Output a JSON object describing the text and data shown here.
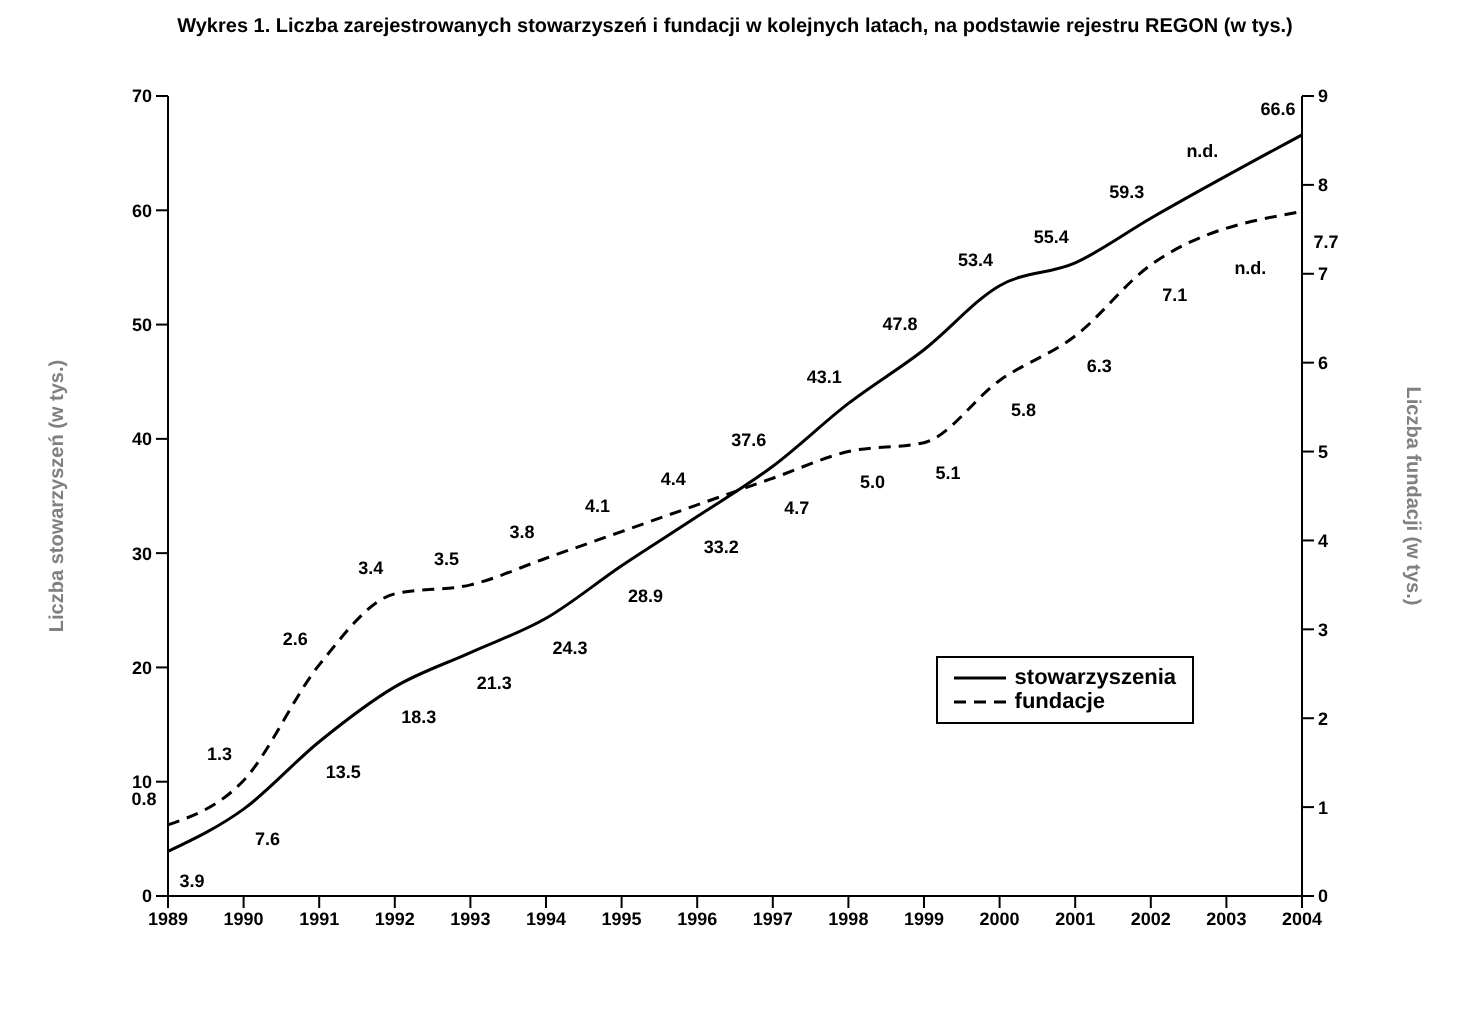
{
  "chart_data": {
    "type": "line",
    "title": "Wykres 1. Liczba zarejestrowanych stowarzyszeń i fundacji w kolejnych latach, na podstawie rejestru REGON (w tys.)",
    "ylabel": "Liczba stowarzyszeń (w tys.)",
    "y2label": "Liczba fundacji (w tys.)",
    "categories": [
      "1989",
      "1990",
      "1991",
      "1992",
      "1993",
      "1994",
      "1995",
      "1996",
      "1997",
      "1998",
      "1999",
      "2000",
      "2001",
      "2002",
      "2003",
      "2004"
    ],
    "series": [
      {
        "name": "stowarzyszenia",
        "color": "#000000",
        "line_style": "solid",
        "values": [
          3.9,
          7.6,
          13.5,
          18.3,
          21.3,
          24.3,
          28.9,
          33.2,
          37.6,
          43.1,
          47.8,
          53.4,
          55.4,
          59.3,
          null,
          66.6
        ],
        "value_labels": [
          "3.9",
          "7.6",
          "13.5",
          "18.3",
          "21.3",
          "24.3",
          "28.9",
          "33.2",
          "37.6",
          "43.1",
          "47.8",
          "53.4",
          "55.4",
          "59.3",
          "n.d.",
          "66.6"
        ]
      },
      {
        "name": "fundacje",
        "color": "#000000",
        "line_style": "dashed",
        "axis": "y2",
        "values": [
          0.8,
          1.3,
          2.6,
          3.4,
          3.5,
          3.8,
          4.1,
          4.4,
          4.7,
          5.0,
          5.1,
          5.8,
          6.3,
          7.1,
          null,
          7.7
        ],
        "value_labels": [
          "0.8",
          "1.3",
          "2.6",
          "3.4",
          "3.5",
          "3.8",
          "4.1",
          "4.4",
          "4.7",
          "5.0",
          "5.1",
          "5.8",
          "6.3",
          "7.1",
          "n.d.",
          "7.7"
        ]
      }
    ],
    "ylim": [
      0,
      70
    ],
    "yticks": [
      0,
      10,
      20,
      30,
      40,
      50,
      60,
      70
    ],
    "y2lim": [
      0,
      9
    ],
    "y2ticks": [
      0,
      1,
      2,
      3,
      4,
      5,
      6,
      7,
      8,
      9
    ],
    "grid": false,
    "legend": "right",
    "marker": "none"
  }
}
